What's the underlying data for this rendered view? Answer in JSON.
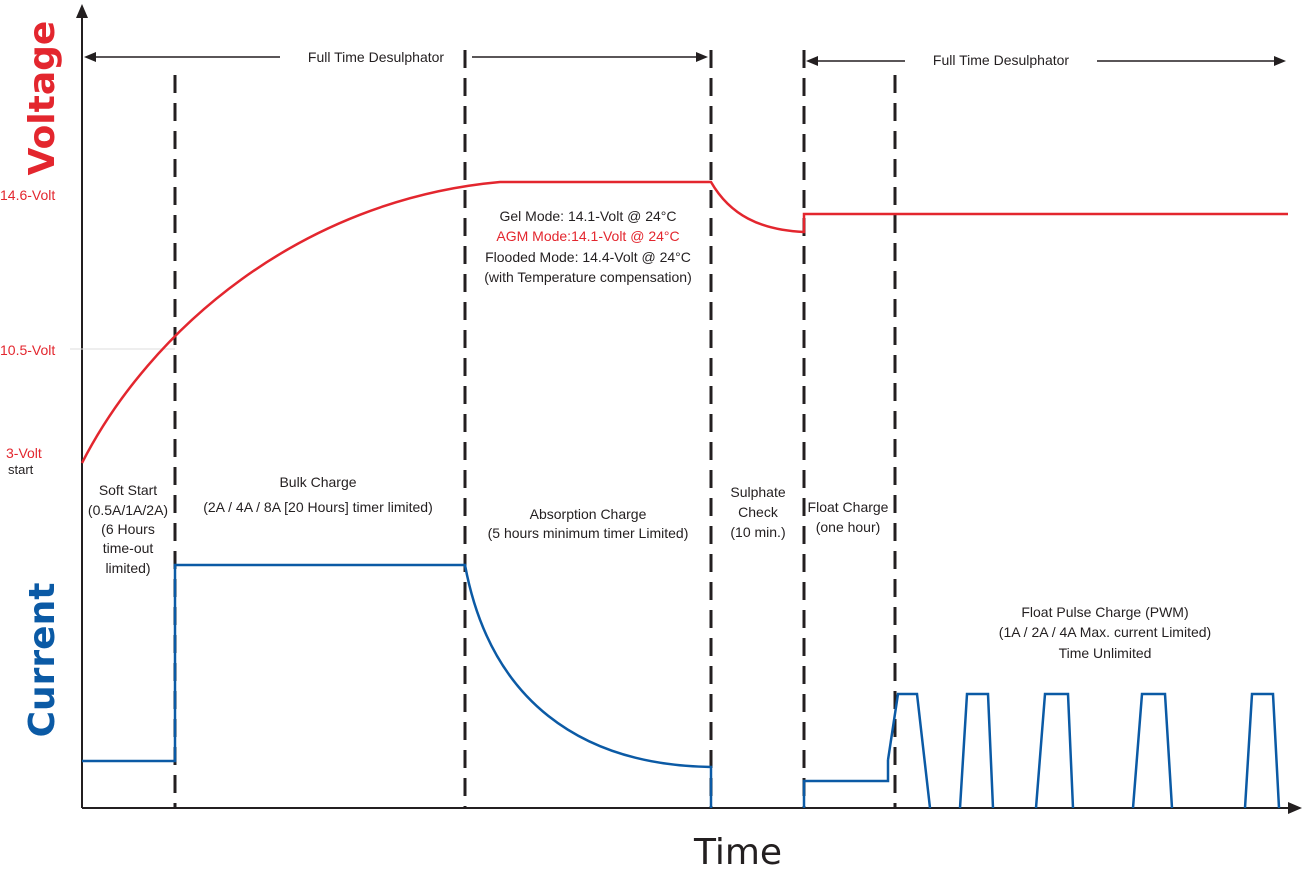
{
  "colors": {
    "voltage": "#e3262e",
    "current": "#0b5aa5",
    "axis": "#231f20"
  },
  "axes": {
    "y_title": "Voltage",
    "y2_title": "Current",
    "x_title": "Time"
  },
  "voltage_levels": {
    "v14_6": "14.6-Volt",
    "v10_5": "10.5-Volt",
    "v3": "3-Volt",
    "v3_sub": "start"
  },
  "desulphator": {
    "left_label": "Full Time Desulphator",
    "right_label": "Full Time Desulphator"
  },
  "modes": {
    "gel": "Gel Mode: 14.1-Volt @ 24°C",
    "agm": "AGM Mode:14.1-Volt @ 24°C",
    "flooded": "Flooded Mode: 14.4-Volt @ 24°C",
    "compensation": "(with Temperature compensation)"
  },
  "stages": {
    "soft_start": [
      "Soft Start",
      "(0.5A/1A/2A)",
      "(6 Hours",
      "time-out",
      "limited)"
    ],
    "bulk": [
      "Bulk Charge",
      "(2A / 4A / 8A [20 Hours] timer limited)"
    ],
    "absorption": [
      "Absorption Charge",
      "(5 hours minimum timer Limited)"
    ],
    "sulphate": [
      "Sulphate",
      "Check",
      "(10 min.)"
    ],
    "float": [
      "Float Charge",
      "(one hour)"
    ],
    "pulse": [
      "Float Pulse Charge (PWM)",
      "(1A / 2A / 4A Max. current Limited)",
      "Time Unlimited"
    ]
  }
}
